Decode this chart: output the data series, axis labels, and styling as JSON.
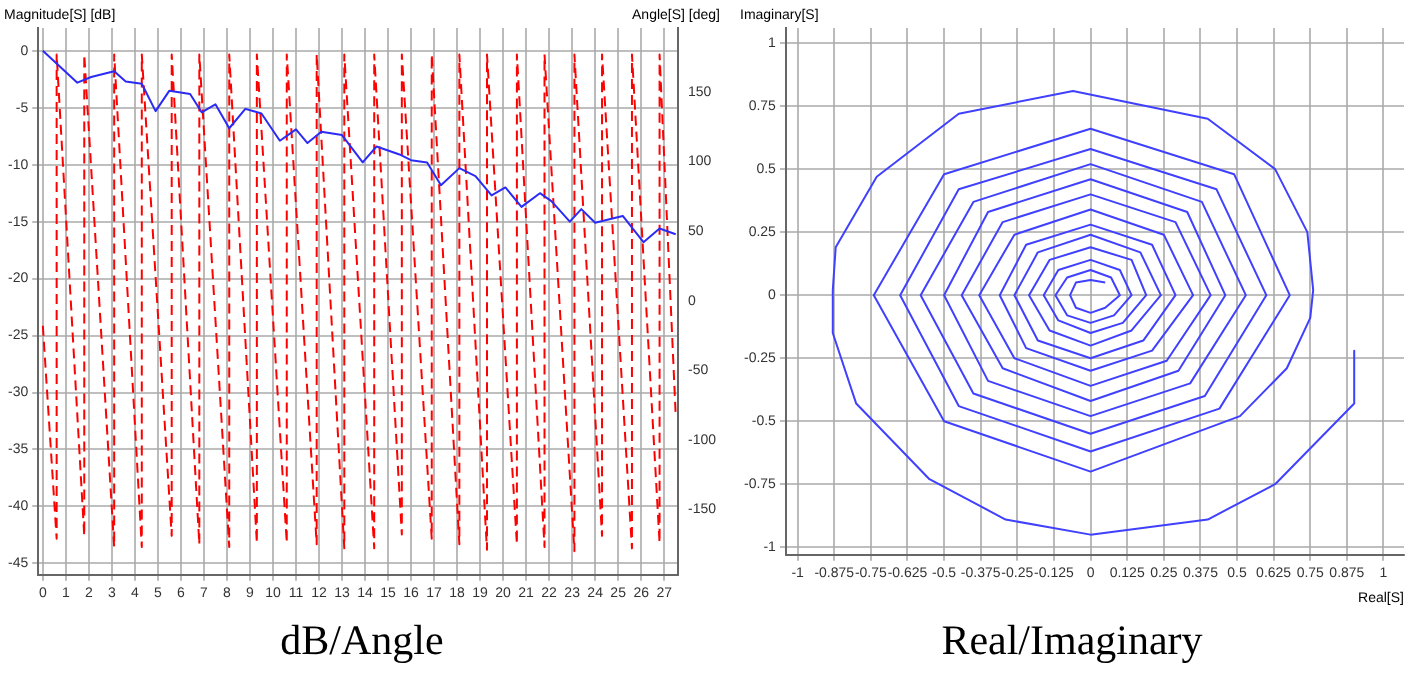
{
  "chart_data": [
    {
      "type": "line",
      "title": "dB/Angle",
      "ylabel": "Magnitude[S] [dB]",
      "y2label": "Angle[S] [deg]",
      "xlim": [
        -0.2,
        27.6
      ],
      "xticks": [
        0,
        1,
        2,
        3,
        4,
        5,
        6,
        7,
        8,
        9,
        10,
        11,
        12,
        13,
        14,
        15,
        16,
        17,
        18,
        19,
        20,
        21,
        22,
        23,
        24,
        25,
        26,
        27
      ],
      "ylim": [
        -46,
        2
      ],
      "yticks": [
        0,
        -5,
        -10,
        -15,
        -20,
        -25,
        -30,
        -35,
        -40,
        -45
      ],
      "y2lim": [
        -197,
        196
      ],
      "y2ticks": [
        150,
        100,
        50,
        0,
        -50,
        -100,
        -150
      ],
      "grid": true,
      "series": [
        {
          "color": "#2b2bf5",
          "line_style": "solid",
          "x": [
            0,
            1.5,
            2.1,
            3.1,
            3.6,
            4.3,
            4.9,
            5.5,
            6.4,
            6.9,
            7.5,
            8.1,
            8.8,
            9.5,
            10.3,
            11.0,
            11.5,
            12.1,
            13.0,
            13.9,
            14.5,
            15.5,
            16.0,
            16.7,
            17.3,
            18.1,
            18.8,
            19.5,
            20.1,
            20.8,
            21.6,
            22.1,
            22.9,
            23.4,
            24.0,
            25.2,
            26.1,
            26.8,
            27.5
          ],
          "values": [
            0,
            -2.8,
            -2.3,
            -1.8,
            -2.7,
            -2.9,
            -5.3,
            -3.5,
            -3.8,
            -5.4,
            -4.7,
            -6.8,
            -5.1,
            -5.5,
            -7.9,
            -6.9,
            -8.1,
            -7.1,
            -7.4,
            -9.8,
            -8.4,
            -9.1,
            -9.6,
            -9.8,
            -11.8,
            -10.3,
            -11.0,
            -12.7,
            -12.0,
            -13.7,
            -12.5,
            -13.2,
            -15.0,
            -13.9,
            -15.1,
            -14.5,
            -16.8,
            -15.6,
            -16.1
          ]
        },
        {
          "color": "#ff0000",
          "line_style": "dashed",
          "axis": "y2",
          "x": [
            0,
            0.6,
            0.6,
            1.8,
            1.8,
            3.1,
            3.1,
            4.3,
            4.3,
            5.6,
            5.6,
            6.8,
            6.8,
            8.1,
            8.1,
            9.3,
            9.3,
            10.6,
            10.6,
            11.9,
            11.9,
            13.1,
            13.1,
            14.4,
            14.4,
            15.6,
            15.6,
            16.9,
            16.9,
            18.1,
            18.1,
            19.3,
            19.3,
            20.6,
            20.6,
            21.8,
            21.8,
            23.1,
            23.1,
            24.3,
            24.3,
            25.6,
            25.6,
            26.8,
            26.8,
            27.5
          ],
          "values": [
            -18,
            -171,
            177,
            -169,
            177,
            -177,
            177,
            -177,
            177,
            -169,
            177,
            -175,
            177,
            -177,
            177,
            -174,
            177,
            -174,
            177,
            -175,
            177,
            -178,
            177,
            -178,
            177,
            -168,
            177,
            -171,
            177,
            -175,
            177,
            -179,
            177,
            -175,
            177,
            -177,
            177,
            -180,
            177,
            -169,
            177,
            -178,
            177,
            -174,
            177,
            -82
          ]
        }
      ]
    },
    {
      "type": "line",
      "title": "Real/Imaginary",
      "xlabel": "Real[S]",
      "ylabel": "Imaginary[S]",
      "xlim": [
        -1.04,
        1.07
      ],
      "xticks": [
        -1,
        -0.875,
        -0.75,
        -0.625,
        -0.5,
        -0.375,
        -0.25,
        -0.125,
        0,
        0.125,
        0.25,
        0.375,
        0.5,
        0.625,
        0.75,
        0.875,
        1
      ],
      "ylim": [
        -1.03,
        1.06
      ],
      "yticks": [
        -1,
        -0.75,
        -0.5,
        -0.25,
        0,
        0.25,
        0.5,
        0.75,
        1
      ],
      "grid": true,
      "series": [
        {
          "color": "#4040ff",
          "line_style": "solid",
          "x": [
            0.9,
            0.9,
            0.63,
            0.4,
            0,
            -0.29,
            -0.55,
            -0.8,
            -0.88,
            -0.88,
            -0.87,
            -0.73,
            -0.45,
            -0.06,
            0.4,
            0.63,
            0.74,
            0.76,
            0.75,
            0.67,
            0.51,
            0,
            -0.5,
            -0.74,
            -0.5,
            0,
            0.49,
            0.68,
            0.44,
            0,
            -0.45,
            -0.65,
            -0.45,
            0,
            0.43,
            0.6,
            0.39,
            0,
            -0.4,
            -0.58,
            -0.4,
            0,
            0.38,
            0.53,
            0.34,
            0,
            -0.35,
            -0.5,
            -0.35,
            0,
            0.33,
            0.46,
            0.3,
            0,
            -0.3,
            -0.44,
            -0.3,
            0,
            0.29,
            0.41,
            0.26,
            0,
            -0.26,
            -0.38,
            -0.26,
            0,
            0.25,
            0.35,
            0.21,
            0,
            -0.22,
            -0.31,
            -0.22,
            0,
            0.21,
            0.29,
            0.18,
            0,
            -0.18,
            -0.26,
            -0.18,
            0,
            0.17,
            0.24,
            0.14,
            0,
            -0.14,
            -0.21,
            -0.14,
            0,
            0.14,
            0.19,
            0.11,
            0,
            -0.11,
            -0.16,
            -0.11,
            0,
            0.1,
            0.14,
            0.08,
            0,
            -0.08,
            -0.12,
            -0.08,
            0,
            0.07,
            0.1,
            0.05,
            0,
            -0.05,
            -0.07,
            -0.05,
            0,
            0.05
          ],
          "values": [
            -0.22,
            -0.43,
            -0.75,
            -0.89,
            -0.95,
            -0.89,
            -0.73,
            -0.43,
            -0.15,
            0.02,
            0.19,
            0.47,
            0.72,
            0.81,
            0.7,
            0.5,
            0.25,
            0.02,
            -0.09,
            -0.29,
            -0.48,
            -0.7,
            -0.5,
            0,
            0.48,
            0.66,
            0.48,
            0,
            -0.45,
            -0.62,
            -0.44,
            0,
            0.42,
            0.58,
            0.42,
            0,
            -0.4,
            -0.55,
            -0.39,
            0,
            0.37,
            0.52,
            0.37,
            0,
            -0.35,
            -0.48,
            -0.34,
            0,
            0.33,
            0.46,
            0.33,
            0,
            -0.3,
            -0.42,
            -0.29,
            0,
            0.29,
            0.4,
            0.29,
            0,
            -0.26,
            -0.36,
            -0.25,
            0,
            0.24,
            0.34,
            0.24,
            0,
            -0.22,
            -0.3,
            -0.21,
            0,
            0.2,
            0.28,
            0.2,
            0,
            -0.18,
            -0.25,
            -0.18,
            0,
            0.17,
            0.24,
            0.17,
            0,
            -0.14,
            -0.2,
            -0.14,
            0,
            0.14,
            0.19,
            0.14,
            0,
            -0.11,
            -0.15,
            -0.1,
            0,
            0.1,
            0.14,
            0.1,
            0,
            -0.08,
            -0.11,
            -0.08,
            0,
            0.07,
            0.1,
            0.07,
            0,
            -0.05,
            -0.07,
            -0.05,
            0,
            0.05,
            0.06,
            0.05
          ]
        }
      ]
    }
  ]
}
